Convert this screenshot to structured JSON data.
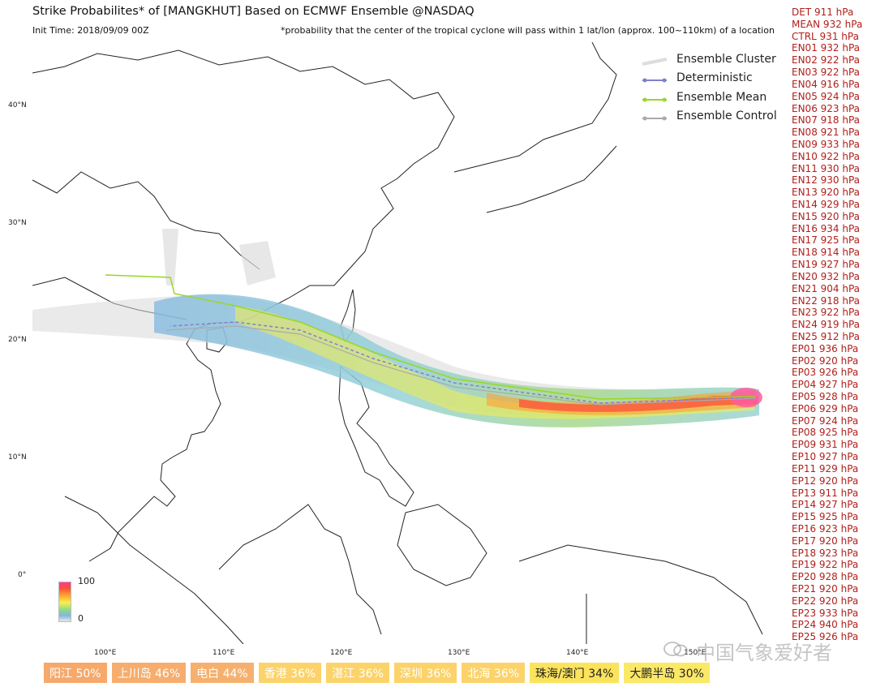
{
  "header": {
    "title": "Strike Probabilites* of [MANGKHUT] Based on ECMWF Ensemble  @NASDAQ",
    "init_time": "Init Time: 2018/09/09 00Z",
    "note": "*probability that the center of the tropical cyclone will pass within 1 lat/lon (approx. 100~110km) of a location"
  },
  "axes": {
    "lat_labels": [
      "40°N",
      "30°N",
      "20°N",
      "10°N",
      "0°"
    ],
    "lon_labels": [
      "100°E",
      "110°E",
      "120°E",
      "130°E",
      "140°E",
      "150°E"
    ]
  },
  "legend": [
    {
      "label": "Ensemble Cluster",
      "color": "#dddddd",
      "kind": "cluster"
    },
    {
      "label": "Deterministic",
      "color": "#8080cc",
      "kind": "line"
    },
    {
      "label": "Ensemble Mean",
      "color": "#9ad626",
      "kind": "line"
    },
    {
      "label": "Ensemble Control",
      "color": "#aaaaaa",
      "kind": "line"
    }
  ],
  "pressures": [
    "DET 911 hPa",
    "MEAN 932 hPa",
    "CTRL 931 hPa",
    "EN01 932 hPa",
    "EN02 922 hPa",
    "EN03 922 hPa",
    "EN04 916 hPa",
    "EN05 924 hPa",
    "EN06 923 hPa",
    "EN07 918 hPa",
    "EN08 921 hPa",
    "EN09 933 hPa",
    "EN10 922 hPa",
    "EN11 930 hPa",
    "EN12 930 hPa",
    "EN13 920 hPa",
    "EN14 929 hPa",
    "EN15 920 hPa",
    "EN16 934 hPa",
    "EN17 925 hPa",
    "EN18 914 hPa",
    "EN19 927 hPa",
    "EN20 932 hPa",
    "EN21 904 hPa",
    "EN22 918 hPa",
    "EN23 922 hPa",
    "EN24 919 hPa",
    "EN25 912 hPa",
    "EP01 936 hPa",
    "EP02 920 hPa",
    "EP03 926 hPa",
    "EP04 927 hPa",
    "EP05 928 hPa",
    "EP06 929 hPa",
    "EP07 924 hPa",
    "EP08 925 hPa",
    "EP09 931 hPa",
    "EP10 927 hPa",
    "EP11 929 hPa",
    "EP12 920 hPa",
    "EP13 911 hPa",
    "EP14 927 hPa",
    "EP15 925 hPa",
    "EP16 923 hPa",
    "EP17 920 hPa",
    "EP18 923 hPa",
    "EP19 922 hPa",
    "EP20 928 hPa",
    "EP21 920 hPa",
    "EP22 920 hPa",
    "EP23 933 hPa",
    "EP24 940 hPa",
    "EP25 926 hPa"
  ],
  "colorbar": {
    "max": "100",
    "min": "0"
  },
  "locations": [
    {
      "label": "阳江 50%",
      "color": "#f6a96b",
      "value": 50
    },
    {
      "label": "上川岛 46%",
      "color": "#f6ad6d",
      "value": 46
    },
    {
      "label": "电白 44%",
      "color": "#f6b06e",
      "value": 44
    },
    {
      "label": "香港 36%",
      "color": "#fbd36a",
      "value": 36
    },
    {
      "label": "湛江 36%",
      "color": "#fbd36a",
      "value": 36
    },
    {
      "label": "深圳 36%",
      "color": "#fbd36a",
      "value": 36
    },
    {
      "label": "北海 36%",
      "color": "#fbd36a",
      "value": 36
    },
    {
      "label": "珠海/澳门 34%",
      "color": "#fbe35c",
      "value": 34
    },
    {
      "label": "大鹏半岛 30%",
      "color": "#fbe866",
      "value": 30
    }
  ],
  "watermark": "中国气象爱好者"
}
